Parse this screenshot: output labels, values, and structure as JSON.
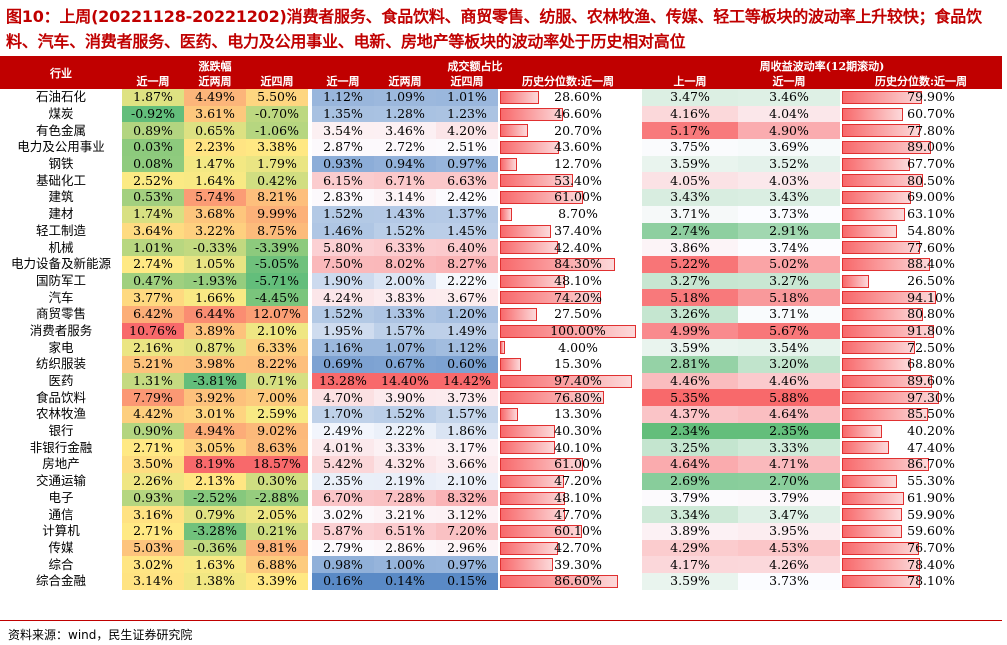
{
  "title": "图10：上周(20221128-20221202)消费者服务、食品饮料、商贸零售、纺服、农林牧渔、传媒、轻工等板块的波动率上升较快；食品饮料、汽车、消费者服务、医药、电力及公用事业、电新、房地产等板块的波动率处于历史相对高位",
  "source": "资料来源：wind，民生证券研究院",
  "headers": {
    "industry": "行业",
    "change_group": "涨跌幅",
    "turnover_group": "成交额占比",
    "vol_group": "周收益波动率(12期滚动)",
    "change_cols": [
      "近一周",
      "近两周",
      "近四周"
    ],
    "turnover_cols": [
      "近一周",
      "近两周",
      "近四周",
      "历史分位数:近一周"
    ],
    "vol_cols": [
      "上一周",
      "近一周",
      "历史分位数:近一周"
    ]
  },
  "rows": [
    {
      "name": "石油石化",
      "c1": "1.87%",
      "c2": "4.49%",
      "c3": "5.50%",
      "t1": "1.12%",
      "t2": "1.09%",
      "t3": "1.01%",
      "tp": "28.60%",
      "v1": "3.47%",
      "v2": "3.46%",
      "vp": "79.90%"
    },
    {
      "name": "煤炭",
      "c1": "-0.92%",
      "c2": "3.61%",
      "c3": "-0.70%",
      "t1": "1.35%",
      "t2": "1.28%",
      "t3": "1.23%",
      "tp": "46.60%",
      "v1": "4.16%",
      "v2": "4.04%",
      "vp": "60.70%"
    },
    {
      "name": "有色金属",
      "c1": "0.89%",
      "c2": "0.65%",
      "c3": "-1.06%",
      "t1": "3.54%",
      "t2": "3.46%",
      "t3": "4.20%",
      "tp": "20.70%",
      "v1": "5.17%",
      "v2": "4.90%",
      "vp": "77.80%"
    },
    {
      "name": "电力及公用事业",
      "c1": "0.03%",
      "c2": "2.23%",
      "c3": "3.38%",
      "t1": "2.87%",
      "t2": "2.72%",
      "t3": "2.51%",
      "tp": "43.60%",
      "v1": "3.75%",
      "v2": "3.69%",
      "vp": "89.00%"
    },
    {
      "name": "钢铁",
      "c1": "0.08%",
      "c2": "1.47%",
      "c3": "1.79%",
      "t1": "0.93%",
      "t2": "0.94%",
      "t3": "0.97%",
      "tp": "12.70%",
      "v1": "3.59%",
      "v2": "3.52%",
      "vp": "67.70%"
    },
    {
      "name": "基础化工",
      "c1": "2.52%",
      "c2": "1.64%",
      "c3": "0.42%",
      "t1": "6.15%",
      "t2": "6.71%",
      "t3": "6.63%",
      "tp": "53.40%",
      "v1": "4.05%",
      "v2": "4.03%",
      "vp": "80.50%"
    },
    {
      "name": "建筑",
      "c1": "0.53%",
      "c2": "5.74%",
      "c3": "8.21%",
      "t1": "2.83%",
      "t2": "3.14%",
      "t3": "2.42%",
      "tp": "61.00%",
      "v1": "3.43%",
      "v2": "3.43%",
      "vp": "69.00%"
    },
    {
      "name": "建材",
      "c1": "1.74%",
      "c2": "3.68%",
      "c3": "9.99%",
      "t1": "1.52%",
      "t2": "1.43%",
      "t3": "1.37%",
      "tp": "8.70%",
      "v1": "3.71%",
      "v2": "3.73%",
      "vp": "63.10%"
    },
    {
      "name": "轻工制造",
      "c1": "3.64%",
      "c2": "3.22%",
      "c3": "8.75%",
      "t1": "1.46%",
      "t2": "1.52%",
      "t3": "1.45%",
      "tp": "37.40%",
      "v1": "2.74%",
      "v2": "2.91%",
      "vp": "54.80%"
    },
    {
      "name": "机械",
      "c1": "1.01%",
      "c2": "-0.33%",
      "c3": "-3.39%",
      "t1": "5.80%",
      "t2": "6.33%",
      "t3": "6.40%",
      "tp": "42.40%",
      "v1": "3.86%",
      "v2": "3.74%",
      "vp": "77.60%"
    },
    {
      "name": "电力设备及新能源",
      "c1": "2.74%",
      "c2": "1.05%",
      "c3": "-5.05%",
      "t1": "7.50%",
      "t2": "8.02%",
      "t3": "8.27%",
      "tp": "84.30%",
      "v1": "5.22%",
      "v2": "5.02%",
      "vp": "88.40%"
    },
    {
      "name": "国防军工",
      "c1": "0.47%",
      "c2": "-1.93%",
      "c3": "-5.71%",
      "t1": "1.90%",
      "t2": "2.00%",
      "t3": "2.22%",
      "tp": "48.10%",
      "v1": "3.27%",
      "v2": "3.27%",
      "vp": "26.50%"
    },
    {
      "name": "汽车",
      "c1": "3.77%",
      "c2": "1.66%",
      "c3": "-4.45%",
      "t1": "4.24%",
      "t2": "3.83%",
      "t3": "3.67%",
      "tp": "74.20%",
      "v1": "5.18%",
      "v2": "5.18%",
      "vp": "94.10%"
    },
    {
      "name": "商贸零售",
      "c1": "6.42%",
      "c2": "6.44%",
      "c3": "12.07%",
      "t1": "1.52%",
      "t2": "1.33%",
      "t3": "1.20%",
      "tp": "27.50%",
      "v1": "3.26%",
      "v2": "3.71%",
      "vp": "80.80%"
    },
    {
      "name": "消费者服务",
      "c1": "10.76%",
      "c2": "3.89%",
      "c3": "2.10%",
      "t1": "1.95%",
      "t2": "1.57%",
      "t3": "1.49%",
      "tp": "100.00%",
      "v1": "4.99%",
      "v2": "5.67%",
      "vp": "91.80%"
    },
    {
      "name": "家电",
      "c1": "2.16%",
      "c2": "0.87%",
      "c3": "6.33%",
      "t1": "1.16%",
      "t2": "1.07%",
      "t3": "1.12%",
      "tp": "4.00%",
      "v1": "3.59%",
      "v2": "3.54%",
      "vp": "72.50%"
    },
    {
      "name": "纺织服装",
      "c1": "5.21%",
      "c2": "3.98%",
      "c3": "8.22%",
      "t1": "0.69%",
      "t2": "0.67%",
      "t3": "0.60%",
      "tp": "15.30%",
      "v1": "2.81%",
      "v2": "3.20%",
      "vp": "68.80%"
    },
    {
      "name": "医药",
      "c1": "1.31%",
      "c2": "-3.81%",
      "c3": "0.71%",
      "t1": "13.28%",
      "t2": "14.40%",
      "t3": "14.42%",
      "tp": "97.40%",
      "v1": "4.46%",
      "v2": "4.46%",
      "vp": "89.60%"
    },
    {
      "name": "食品饮料",
      "c1": "7.79%",
      "c2": "3.92%",
      "c3": "7.00%",
      "t1": "4.70%",
      "t2": "3.90%",
      "t3": "3.73%",
      "tp": "76.80%",
      "v1": "5.35%",
      "v2": "5.88%",
      "vp": "97.30%"
    },
    {
      "name": "农林牧渔",
      "c1": "4.42%",
      "c2": "3.01%",
      "c3": "2.59%",
      "t1": "1.70%",
      "t2": "1.52%",
      "t3": "1.57%",
      "tp": "13.30%",
      "v1": "4.37%",
      "v2": "4.64%",
      "vp": "85.50%"
    },
    {
      "name": "银行",
      "c1": "0.90%",
      "c2": "4.94%",
      "c3": "9.02%",
      "t1": "2.49%",
      "t2": "2.22%",
      "t3": "1.86%",
      "tp": "40.30%",
      "v1": "2.34%",
      "v2": "2.35%",
      "vp": "40.20%"
    },
    {
      "name": "非银行金融",
      "c1": "2.71%",
      "c2": "3.05%",
      "c3": "8.63%",
      "t1": "4.01%",
      "t2": "3.33%",
      "t3": "3.17%",
      "tp": "40.10%",
      "v1": "3.25%",
      "v2": "3.33%",
      "vp": "47.40%"
    },
    {
      "name": "房地产",
      "c1": "3.50%",
      "c2": "8.19%",
      "c3": "18.57%",
      "t1": "5.42%",
      "t2": "4.32%",
      "t3": "3.66%",
      "tp": "61.00%",
      "v1": "4.64%",
      "v2": "4.71%",
      "vp": "86.70%"
    },
    {
      "name": "交通运输",
      "c1": "2.26%",
      "c2": "2.13%",
      "c3": "0.30%",
      "t1": "2.35%",
      "t2": "2.19%",
      "t3": "2.10%",
      "tp": "47.20%",
      "v1": "2.69%",
      "v2": "2.70%",
      "vp": "55.30%"
    },
    {
      "name": "电子",
      "c1": "0.93%",
      "c2": "-2.52%",
      "c3": "-2.88%",
      "t1": "6.70%",
      "t2": "7.28%",
      "t3": "8.32%",
      "tp": "48.10%",
      "v1": "3.79%",
      "v2": "3.79%",
      "vp": "61.90%"
    },
    {
      "name": "通信",
      "c1": "3.16%",
      "c2": "0.79%",
      "c3": "2.05%",
      "t1": "3.02%",
      "t2": "3.21%",
      "t3": "3.12%",
      "tp": "47.70%",
      "v1": "3.34%",
      "v2": "3.47%",
      "vp": "59.90%"
    },
    {
      "name": "计算机",
      "c1": "2.71%",
      "c2": "-3.28%",
      "c3": "0.21%",
      "t1": "5.87%",
      "t2": "6.51%",
      "t3": "7.20%",
      "tp": "60.10%",
      "v1": "3.89%",
      "v2": "3.95%",
      "vp": "59.60%"
    },
    {
      "name": "传媒",
      "c1": "5.03%",
      "c2": "-0.36%",
      "c3": "9.81%",
      "t1": "2.79%",
      "t2": "2.86%",
      "t3": "2.96%",
      "tp": "42.70%",
      "v1": "4.29%",
      "v2": "4.53%",
      "vp": "76.70%"
    },
    {
      "name": "综合",
      "c1": "3.02%",
      "c2": "1.63%",
      "c3": "6.88%",
      "t1": "0.98%",
      "t2": "1.00%",
      "t3": "0.97%",
      "tp": "39.30%",
      "v1": "4.17%",
      "v2": "4.26%",
      "vp": "78.40%"
    },
    {
      "name": "综合金融",
      "c1": "3.14%",
      "c2": "1.38%",
      "c3": "3.39%",
      "t1": "0.16%",
      "t2": "0.14%",
      "t3": "0.15%",
      "tp": "86.60%",
      "v1": "3.59%",
      "v2": "3.73%",
      "vp": "78.10%"
    }
  ],
  "colors": {
    "header_bg": "#c00000",
    "chg_low": "#63be7b",
    "chg_mid": "#ffeb84",
    "chg_high": "#f8696b",
    "turn_low": "#5a8ac6",
    "turn_mid": "#fcfcff",
    "turn_high": "#f8696b",
    "vol_low": "#63be7b",
    "vol_mid": "#fcfcff",
    "vol_high": "#f8696b",
    "bar": "#f8696b"
  }
}
